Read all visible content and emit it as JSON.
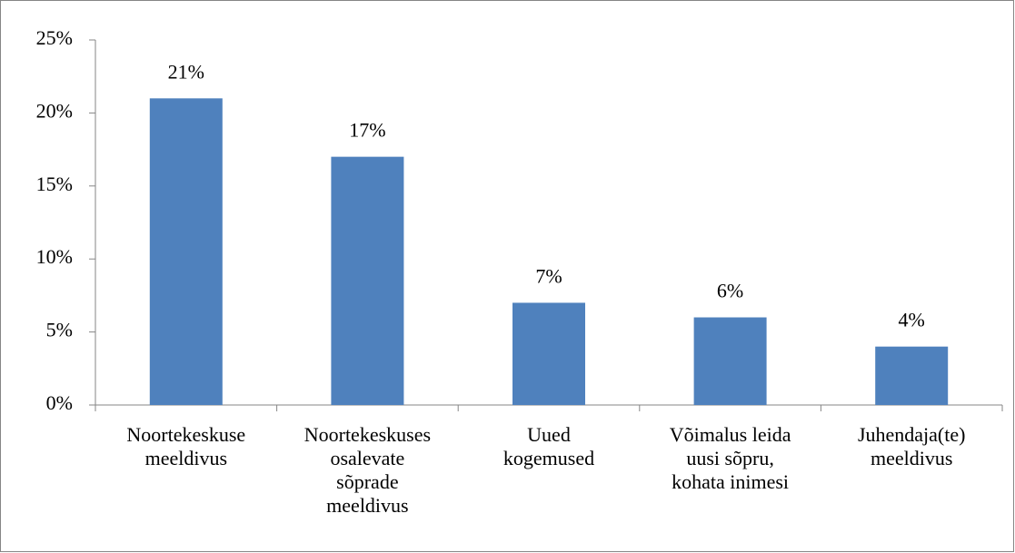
{
  "chart_data": {
    "type": "bar",
    "categories": [
      "Noortekeskuse\nmeeldivus",
      "Noortekeskuses\nosalevate\nsõprade\nmeeldivus",
      "Uued\nkogemused",
      "Võimalus leida\nuusi sõpru,\nkohata inimesi",
      "Juhendaja(te)\nmeeldivus"
    ],
    "values": [
      21,
      17,
      7,
      6,
      4
    ],
    "value_labels": [
      "21%",
      "17%",
      "7%",
      "6%",
      "4%"
    ],
    "color": "#4f81bd",
    "ylim": [
      0,
      25
    ],
    "yticks": [
      {
        "value": 0,
        "label": "0%"
      },
      {
        "value": 5,
        "label": "5%"
      },
      {
        "value": 10,
        "label": "10%"
      },
      {
        "value": 15,
        "label": "15%"
      },
      {
        "value": 20,
        "label": "20%"
      },
      {
        "value": 25,
        "label": "25%"
      }
    ],
    "grid": false
  }
}
